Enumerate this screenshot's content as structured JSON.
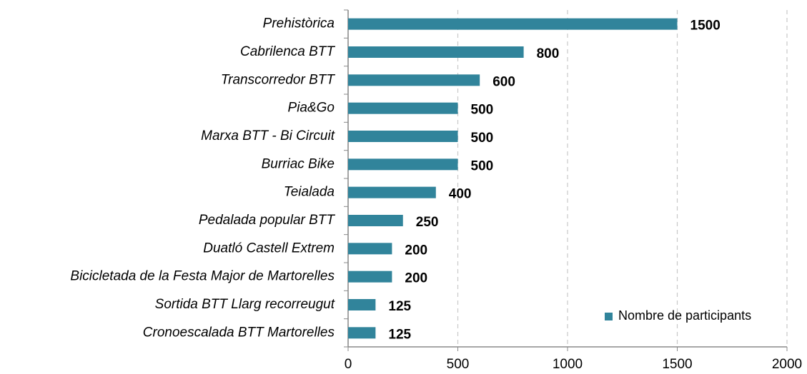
{
  "chart_data": {
    "type": "bar",
    "orientation": "horizontal",
    "categories": [
      "Prehistòrica",
      "Cabrilenca BTT",
      "Transcorredor BTT",
      "Pia&Go",
      "Marxa BTT - Bi Circuit",
      "Burriac Bike",
      "Teialada",
      "Pedalada popular BTT",
      "Duatló Castell Extrem",
      "Bicicletada de la Festa Major de Martorelles",
      "Sortida BTT Llarg recorreugut",
      "Cronoescalada BTT Martorelles"
    ],
    "series": [
      {
        "name": "Nombre de participants",
        "color": "#31849b",
        "values": [
          1500,
          800,
          600,
          500,
          500,
          500,
          400,
          250,
          200,
          200,
          125,
          125
        ]
      }
    ],
    "xlim": [
      0,
      2000
    ],
    "xticks": [
      0,
      500,
      1000,
      1500,
      2000
    ],
    "grid": true,
    "legend": "lower right"
  }
}
